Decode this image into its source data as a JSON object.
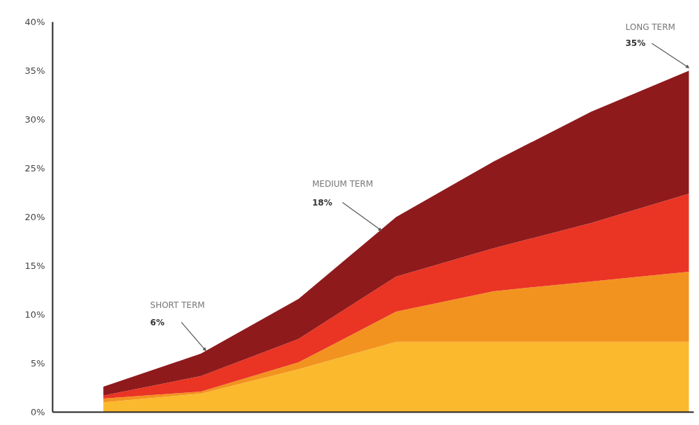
{
  "chart_data": {
    "type": "area",
    "stacked": true,
    "categories": [
      null,
      null,
      null,
      null,
      null,
      null,
      null
    ],
    "series": [
      {
        "color": "#fbb92d",
        "values": [
          1.0,
          1.9,
          4.4,
          7.2,
          7.2,
          7.2,
          7.2
        ]
      },
      {
        "color": "#f3931f",
        "values": [
          0.4,
          0.2,
          0.7,
          3.1,
          5.2,
          6.2,
          7.2
        ]
      },
      {
        "color": "#ea3424",
        "values": [
          0.3,
          1.6,
          2.4,
          3.6,
          4.4,
          6.0,
          8.0
        ]
      },
      {
        "color": "#8e1a1c",
        "values": [
          0.9,
          2.3,
          4.1,
          6.1,
          8.9,
          11.4,
          12.6
        ]
      }
    ],
    "ylim": [
      0,
      40
    ],
    "yticks": [
      {
        "value": 0,
        "label": "0%"
      },
      {
        "value": 5,
        "label": "5%"
      },
      {
        "value": 10,
        "label": "10%"
      },
      {
        "value": 15,
        "label": "15%"
      },
      {
        "value": 20,
        "label": "20%"
      },
      {
        "value": 25,
        "label": "25%"
      },
      {
        "value": 30,
        "label": "30%"
      },
      {
        "value": 35,
        "label": "35%"
      },
      {
        "value": 40,
        "label": "40%"
      }
    ],
    "tick_labels": "y",
    "annotations": [
      "SHORT TERM",
      "6%",
      "MEDIUM TERM",
      "18%",
      "LONG TERM",
      "35%"
    ]
  }
}
